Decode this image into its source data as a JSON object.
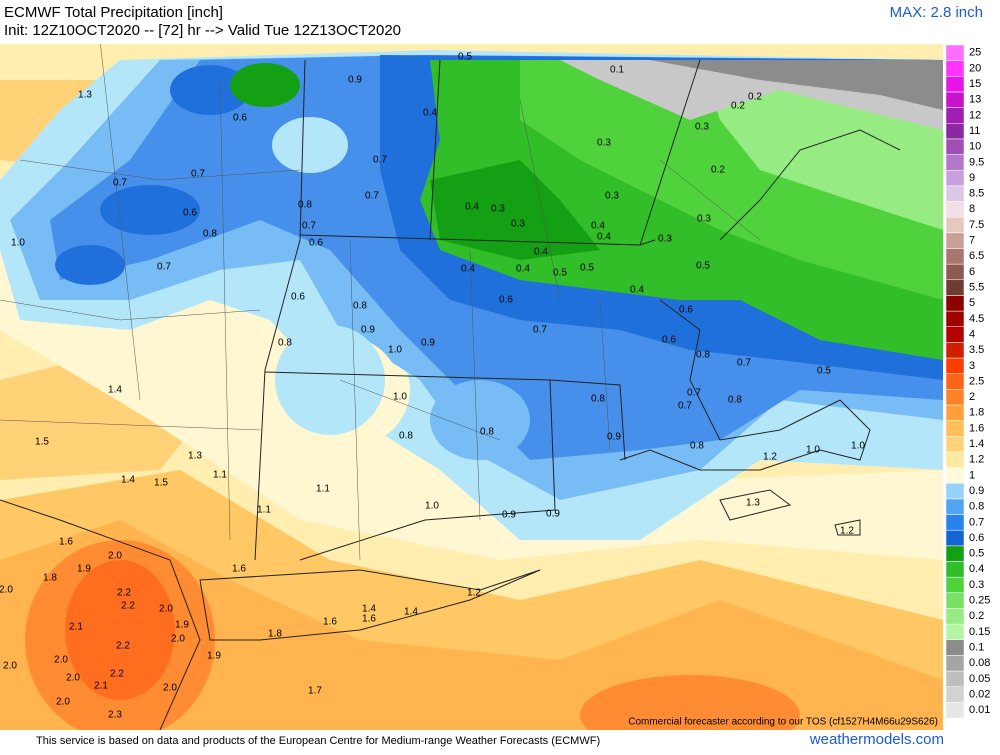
{
  "header": {
    "title": "ECMWF Total Precipitation [inch]",
    "subtitle": "Init: 12Z10OCT2020 -- [72] hr --> Valid Tue 12Z13OCT2020",
    "max_label": "MAX: 2.8 inch"
  },
  "map": {
    "labels": [
      "1.3",
      "0.9",
      "0.5",
      "0.1",
      "0.2",
      "0.2",
      "0.6",
      "0.4",
      "0.3",
      "0.3",
      "0.2",
      "0.7",
      "0.7",
      "0.7",
      "0.7",
      "0.3",
      "0.6",
      "0.8",
      "0.4",
      "0.3",
      "0.3",
      "0.4",
      "0.4",
      "0.3",
      "1.0",
      "0.8",
      "0.7",
      "0.6",
      "0.4",
      "0.3",
      "0.7",
      "0.4",
      "0.4",
      "0.5",
      "0.5",
      "0.5",
      "0.6",
      "0.6",
      "0.4",
      "0.8",
      "0.6",
      "0.9",
      "0.7",
      "0.6",
      "0.8",
      "1.0",
      "0.9",
      "0.8",
      "0.7",
      "0.5",
      "1.4",
      "1.0",
      "0.8",
      "0.7",
      "0.7",
      "0.8",
      "1.5",
      "0.8",
      "0.8",
      "0.9",
      "0.8",
      "1.0",
      "1.3",
      "1.2",
      "1.0",
      "1.1",
      "1.4",
      "1.5",
      "1.1",
      "1.1",
      "1.0",
      "0.9",
      "0.9",
      "1.3",
      "1.2",
      "1.6",
      "2.0",
      "1.6",
      "1.8",
      "1.9",
      "2.2",
      "1.2",
      "2.2",
      "2.0",
      "1.4",
      "1.4",
      "2.1",
      "1.9",
      "1.8",
      "1.6",
      "1.6",
      "2.2",
      "2.0",
      "1.9",
      "2.0",
      "2.0",
      "2.2",
      "2.0",
      "2.1",
      "1.7",
      "2.0",
      "2.0",
      "2.3",
      "2.0"
    ],
    "watermark": "Commercial forecaster according to our TOS (cf1527H4M66u29S626)"
  },
  "colorbar": {
    "values": [
      0.01,
      0.02,
      0.05,
      0.08,
      0.1,
      0.15,
      0.2,
      0.25,
      0.3,
      0.4,
      0.5,
      0.6,
      0.7,
      0.8,
      0.9,
      1,
      1.2,
      1.4,
      1.6,
      1.8,
      2,
      2.5,
      3,
      3.5,
      4,
      4.5,
      5,
      5.5,
      6,
      6.5,
      7,
      7.5,
      8,
      8.5,
      9,
      9.5,
      10,
      11,
      12,
      13,
      15,
      20,
      25
    ],
    "colors": [
      "#e6e6e6",
      "#d2d2d2",
      "#bebebe",
      "#a5a5a5",
      "#8c8c8c",
      "#b4f5a0",
      "#96eb82",
      "#78e164",
      "#50d23c",
      "#32be28",
      "#14a014",
      "#1464d2",
      "#2882f0",
      "#50a5f5",
      "#96d2fa",
      "#fffadc",
      "#ffe8a0",
      "#ffd278",
      "#ffbe5a",
      "#ffa03c",
      "#ff8228",
      "#ff6414",
      "#ff3c00",
      "#d21e00",
      "#b40000",
      "#a00000",
      "#8c0000",
      "#6e3c32",
      "#8c5a50",
      "#a8786e",
      "#c8a096",
      "#e6c8be",
      "#f0e0e6",
      "#dcc8e6",
      "#c8a0dc",
      "#b478c8",
      "#a050b4",
      "#8c28a0",
      "#a01eb4",
      "#c814c8",
      "#e614e6",
      "#ff32ff",
      "#ff6eff"
    ]
  },
  "footer": {
    "credit": "This service is based on data and products of the European Centre for Medium-range Weather Forecasts (ECMWF)",
    "site": "weathermodels.com"
  }
}
